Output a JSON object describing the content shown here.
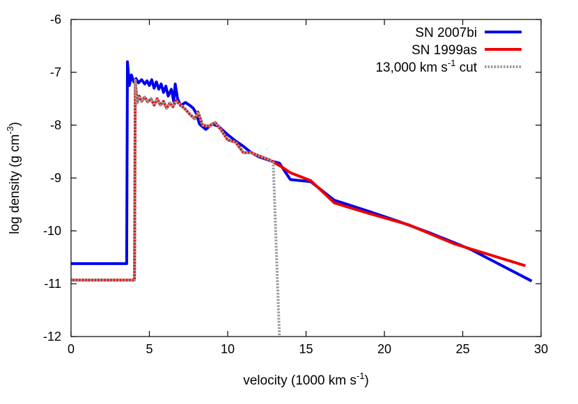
{
  "chart_data": {
    "type": "line",
    "xlabel": {
      "base": "velocity (1000 km s",
      "sup": "-1",
      "tail": ")"
    },
    "ylabel": {
      "base": "log density (g cm",
      "sup": "-3",
      "tail": ")"
    },
    "xlim": [
      0,
      30
    ],
    "ylim": [
      -12,
      -6
    ],
    "xticks": [
      0,
      5,
      10,
      15,
      20,
      25,
      30
    ],
    "yticks": [
      -12,
      -11,
      -10,
      -9,
      -8,
      -7,
      -6
    ],
    "xtick_labels": [
      "0",
      "5",
      "10",
      "15",
      "20",
      "25",
      "30"
    ],
    "ytick_labels": [
      "-12",
      "-11",
      "-10",
      "-9",
      "-8",
      "-7",
      "-6"
    ],
    "grid": false,
    "legend_position": "top-right",
    "series": [
      {
        "name": "SN 2007bi",
        "color": "#0000ee",
        "style": "solid",
        "points": [
          [
            0,
            -10.62
          ],
          [
            3.55,
            -10.62
          ],
          [
            3.6,
            -6.8
          ],
          [
            3.72,
            -7.25
          ],
          [
            3.85,
            -7.05
          ],
          [
            4.0,
            -7.18
          ],
          [
            4.15,
            -7.12
          ],
          [
            4.3,
            -7.2
          ],
          [
            4.5,
            -7.14
          ],
          [
            4.7,
            -7.22
          ],
          [
            4.85,
            -7.16
          ],
          [
            5.0,
            -7.25
          ],
          [
            5.15,
            -7.14
          ],
          [
            5.3,
            -7.3
          ],
          [
            5.45,
            -7.18
          ],
          [
            5.6,
            -7.32
          ],
          [
            5.75,
            -7.22
          ],
          [
            5.9,
            -7.38
          ],
          [
            6.05,
            -7.26
          ],
          [
            6.2,
            -7.45
          ],
          [
            6.4,
            -7.32
          ],
          [
            6.55,
            -7.55
          ],
          [
            6.65,
            -7.22
          ],
          [
            6.8,
            -7.5
          ],
          [
            7.0,
            -7.63
          ],
          [
            7.3,
            -7.57
          ],
          [
            7.6,
            -7.63
          ],
          [
            7.8,
            -7.68
          ],
          [
            8.0,
            -7.78
          ],
          [
            8.2,
            -7.98
          ],
          [
            8.6,
            -8.08
          ],
          [
            9.0,
            -7.98
          ],
          [
            9.4,
            -8.02
          ],
          [
            10.0,
            -8.18
          ],
          [
            10.5,
            -8.3
          ],
          [
            11.0,
            -8.4
          ],
          [
            11.5,
            -8.52
          ],
          [
            12.0,
            -8.6
          ],
          [
            12.8,
            -8.68
          ],
          [
            13.3,
            -8.72
          ],
          [
            14.0,
            -9.03
          ],
          [
            15.3,
            -9.07
          ],
          [
            16.8,
            -9.42
          ],
          [
            19.0,
            -9.63
          ],
          [
            21.0,
            -9.83
          ],
          [
            23.0,
            -10.05
          ],
          [
            25.5,
            -10.35
          ],
          [
            29.4,
            -10.95
          ]
        ]
      },
      {
        "name": "SN 1999as",
        "color": "#ee0000",
        "style": "solid",
        "points": [
          [
            0,
            -10.93
          ],
          [
            4.05,
            -10.93
          ],
          [
            4.1,
            -7.15
          ],
          [
            4.22,
            -7.58
          ],
          [
            4.35,
            -7.45
          ],
          [
            4.5,
            -7.55
          ],
          [
            4.7,
            -7.47
          ],
          [
            4.9,
            -7.56
          ],
          [
            5.1,
            -7.5
          ],
          [
            5.3,
            -7.62
          ],
          [
            5.5,
            -7.5
          ],
          [
            5.7,
            -7.62
          ],
          [
            5.9,
            -7.55
          ],
          [
            6.1,
            -7.68
          ],
          [
            6.3,
            -7.58
          ],
          [
            6.5,
            -7.65
          ],
          [
            6.7,
            -7.54
          ],
          [
            7.0,
            -7.62
          ],
          [
            7.3,
            -7.7
          ],
          [
            7.6,
            -7.8
          ],
          [
            7.9,
            -7.88
          ],
          [
            8.1,
            -7.75
          ],
          [
            8.4,
            -8.0
          ],
          [
            8.8,
            -8.02
          ],
          [
            9.2,
            -7.95
          ],
          [
            9.6,
            -8.1
          ],
          [
            10.0,
            -8.28
          ],
          [
            10.5,
            -8.32
          ],
          [
            11.0,
            -8.52
          ],
          [
            11.5,
            -8.52
          ],
          [
            12.0,
            -8.58
          ],
          [
            12.7,
            -8.66
          ],
          [
            13.5,
            -8.8
          ],
          [
            14.0,
            -8.9
          ],
          [
            15.3,
            -9.05
          ],
          [
            16.8,
            -9.47
          ],
          [
            19.0,
            -9.67
          ],
          [
            21.5,
            -9.88
          ],
          [
            24.5,
            -10.25
          ],
          [
            29.0,
            -10.66
          ]
        ]
      },
      {
        "name": "13,000 km s^-1 cut",
        "color": "#9a9a9a",
        "style": "dotted",
        "points": [
          [
            0,
            -10.93
          ],
          [
            4.05,
            -10.93
          ],
          [
            4.1,
            -7.15
          ],
          [
            4.22,
            -7.58
          ],
          [
            4.35,
            -7.45
          ],
          [
            4.5,
            -7.55
          ],
          [
            4.7,
            -7.47
          ],
          [
            4.9,
            -7.56
          ],
          [
            5.1,
            -7.5
          ],
          [
            5.3,
            -7.62
          ],
          [
            5.5,
            -7.5
          ],
          [
            5.7,
            -7.62
          ],
          [
            5.9,
            -7.55
          ],
          [
            6.1,
            -7.68
          ],
          [
            6.3,
            -7.58
          ],
          [
            6.5,
            -7.65
          ],
          [
            6.7,
            -7.54
          ],
          [
            7.0,
            -7.62
          ],
          [
            7.3,
            -7.7
          ],
          [
            7.6,
            -7.8
          ],
          [
            7.9,
            -7.88
          ],
          [
            8.1,
            -7.75
          ],
          [
            8.4,
            -8.0
          ],
          [
            8.8,
            -8.02
          ],
          [
            9.2,
            -7.95
          ],
          [
            9.6,
            -8.1
          ],
          [
            10.0,
            -8.28
          ],
          [
            10.5,
            -8.32
          ],
          [
            11.0,
            -8.52
          ],
          [
            11.5,
            -8.52
          ],
          [
            12.0,
            -8.58
          ],
          [
            12.7,
            -8.66
          ],
          [
            12.9,
            -8.7
          ],
          [
            13.3,
            -12.0
          ]
        ]
      }
    ],
    "legend": [
      {
        "label_base": "SN 2007bi",
        "label_sup": "",
        "label_tail": ""
      },
      {
        "label_base": "SN 1999as",
        "label_sup": "",
        "label_tail": ""
      },
      {
        "label_base": "13,000 km s",
        "label_sup": "-1",
        "label_tail": " cut"
      }
    ]
  }
}
